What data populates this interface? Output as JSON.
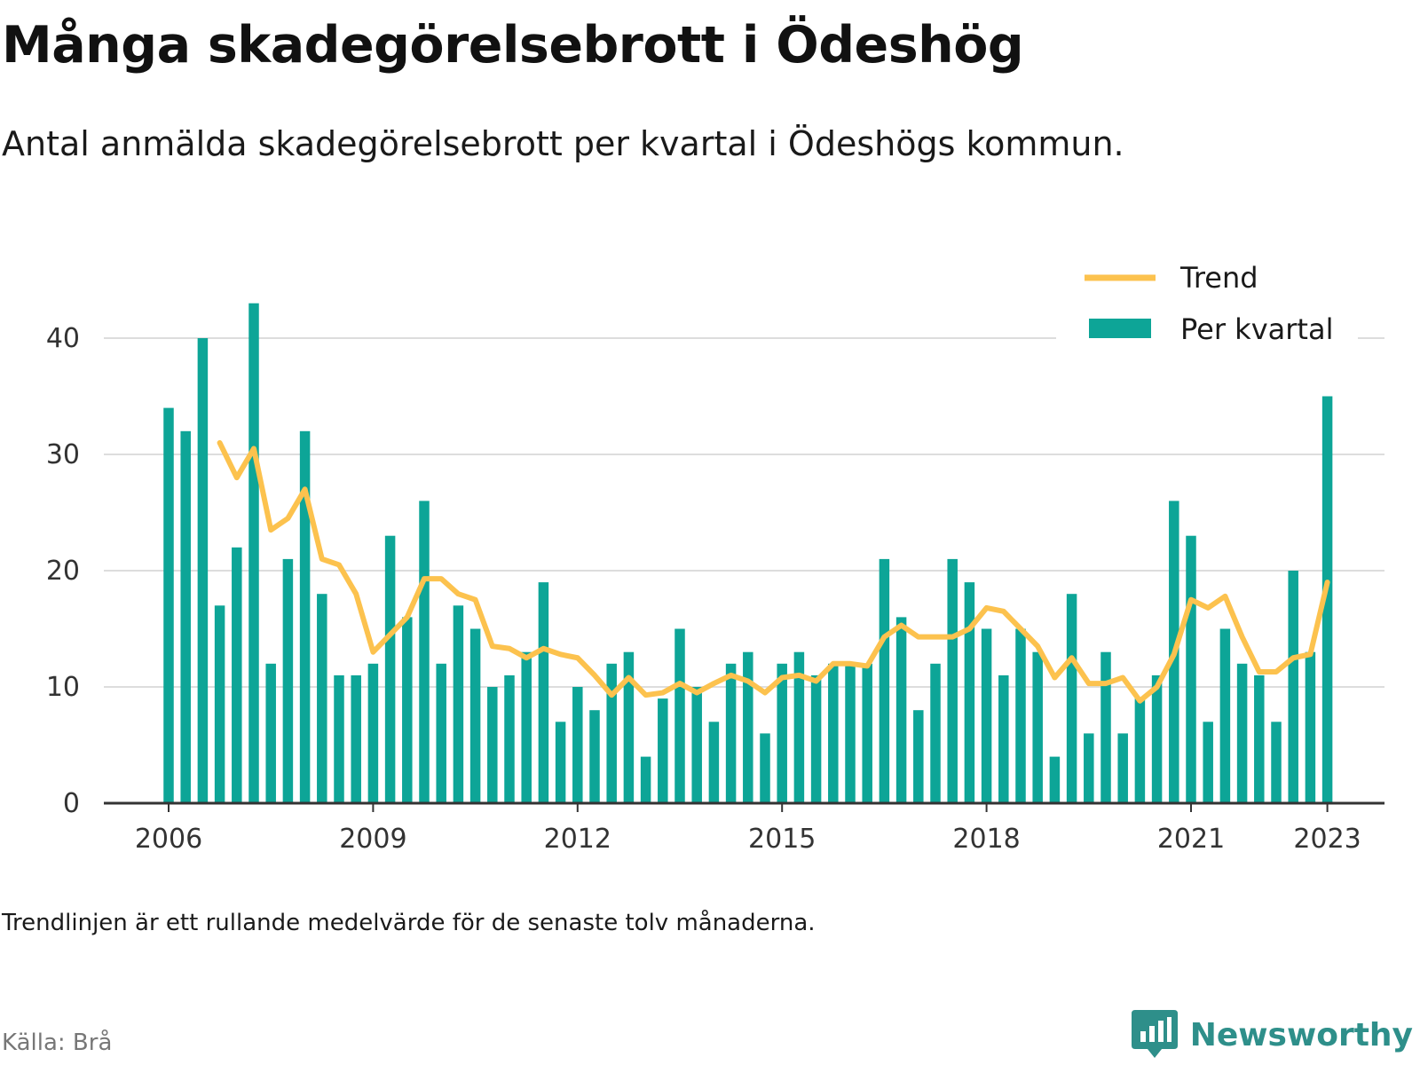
{
  "header": {
    "title": "Många skadegörelsebrott i Ödeshög",
    "subtitle": "Antal anmälda skadegörelsebrott per kvartal i Ödeshögs kommun."
  },
  "footer": {
    "note": "Trendlinjen är ett rullande medelvärde för de senaste tolv månaderna.",
    "source": "Källa: Brå",
    "brand": "Newsworthy"
  },
  "colors": {
    "bar": "#0da597",
    "trend": "#fcc24e",
    "grid": "#dddddd",
    "axis": "#333333",
    "brand": "#2e8f8a"
  },
  "icons": {
    "brand_logo": "newsworthy-logo-icon"
  },
  "chart_data": {
    "type": "bar",
    "x_unit": "quarter",
    "start_quarter": "2006-Q1",
    "ylim": [
      0,
      45
    ],
    "yticks": [
      0,
      10,
      20,
      30,
      40
    ],
    "xticks": [
      "2006",
      "2009",
      "2012",
      "2015",
      "2018",
      "2021",
      "2023"
    ],
    "grid": true,
    "legend_position": "top-right",
    "series": [
      {
        "name": "Per kvartal",
        "kind": "bar",
        "values": [
          34,
          32,
          40,
          17,
          22,
          43,
          12,
          21,
          32,
          18,
          11,
          11,
          12,
          23,
          16,
          26,
          12,
          17,
          15,
          10,
          11,
          13,
          19,
          7,
          10,
          8,
          12,
          13,
          4,
          9,
          15,
          10,
          7,
          12,
          13,
          6,
          12,
          13,
          11,
          12,
          12,
          12,
          21,
          16,
          8,
          12,
          21,
          19,
          15,
          11,
          15,
          13,
          4,
          18,
          6,
          13,
          6,
          9,
          11,
          26,
          23,
          7,
          15,
          12,
          11,
          7,
          20,
          13,
          35
        ]
      },
      {
        "name": "Trend",
        "kind": "line",
        "start_index": 3,
        "values": [
          31,
          28,
          30.5,
          23.5,
          24.5,
          27,
          21,
          20.5,
          18,
          13,
          14.5,
          16,
          19.3,
          19.3,
          18,
          17.5,
          13.5,
          13.3,
          12.5,
          13.3,
          12.8,
          12.5,
          11,
          9.3,
          10.8,
          9.3,
          9.5,
          10.3,
          9.5,
          10.3,
          11,
          10.5,
          9.5,
          10.8,
          11,
          10.5,
          12,
          12,
          11.8,
          14.3,
          15.3,
          14.3,
          14.3,
          14.3,
          15,
          16.8,
          16.5,
          15,
          13.5,
          10.8,
          12.5,
          10.3,
          10.3,
          10.8,
          8.8,
          10,
          12.8,
          17.5,
          16.8,
          17.8,
          14.3,
          11.3,
          11.3,
          12.5,
          12.8,
          19
        ]
      }
    ]
  }
}
